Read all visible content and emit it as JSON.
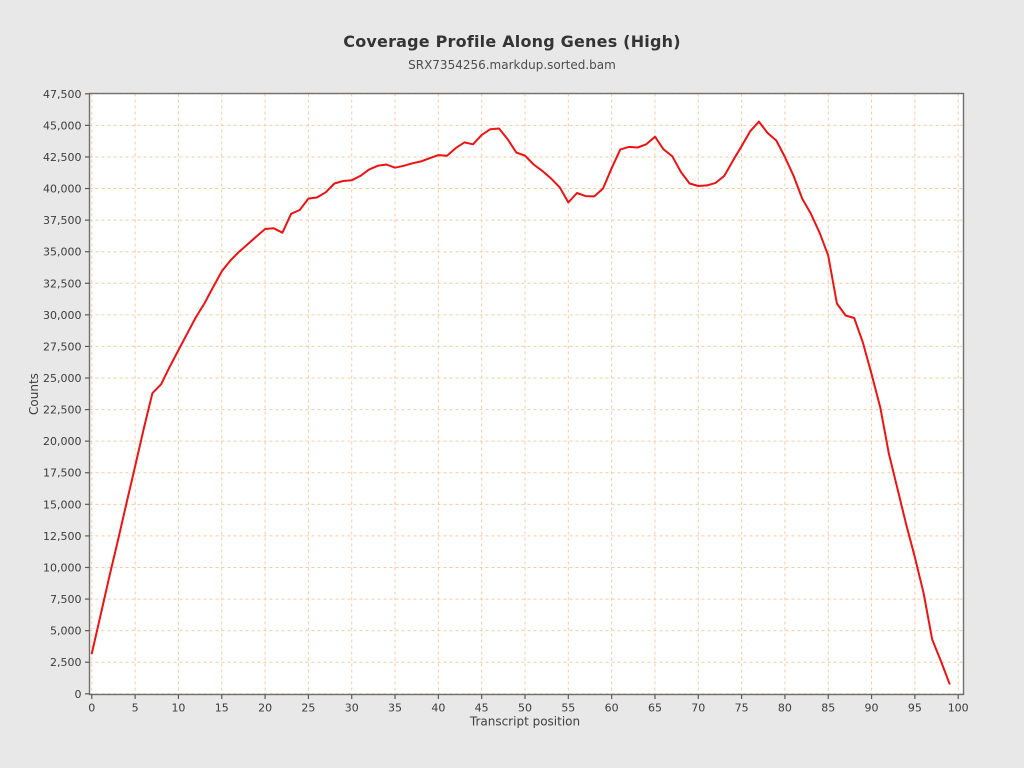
{
  "page": {
    "background": "#e8e8e8"
  },
  "header": {
    "title": "Coverage Profile Along Genes (High)",
    "subtitle": "SRX7354256.markdup.sorted.bam"
  },
  "chart_data": {
    "type": "line",
    "title": "Coverage Profile Along Genes (High)",
    "subtitle": "SRX7354256.markdup.sorted.bam",
    "xlabel": "Transcript position",
    "ylabel": "Counts",
    "xlim": [
      0,
      100
    ],
    "ylim": [
      0,
      47500
    ],
    "x_ticks": [
      0,
      5,
      10,
      15,
      20,
      25,
      30,
      35,
      40,
      45,
      50,
      55,
      60,
      65,
      70,
      75,
      80,
      85,
      90,
      95,
      100
    ],
    "y_ticks": [
      0,
      2500,
      5000,
      7500,
      10000,
      12500,
      15000,
      17500,
      20000,
      22500,
      25000,
      27500,
      30000,
      32500,
      35000,
      37500,
      40000,
      42500,
      45000,
      47500
    ],
    "grid": true,
    "legend": "none",
    "colors": {
      "line": "#ee1312",
      "grid": "#f6cba2",
      "plot_background": "#ffffff",
      "plot_border": "#6f6f6f",
      "tick": "#5a5a5a"
    },
    "series": [
      {
        "name": "coverage",
        "x": [
          0,
          1,
          2,
          3,
          4,
          5,
          6,
          7,
          8,
          9,
          10,
          11,
          12,
          13,
          14,
          15,
          16,
          17,
          18,
          19,
          20,
          21,
          22,
          23,
          24,
          25,
          26,
          27,
          28,
          29,
          30,
          31,
          32,
          33,
          34,
          35,
          36,
          37,
          38,
          39,
          40,
          41,
          42,
          43,
          44,
          45,
          46,
          47,
          48,
          49,
          50,
          51,
          52,
          53,
          54,
          55,
          56,
          57,
          58,
          59,
          60,
          61,
          62,
          63,
          64,
          65,
          66,
          67,
          68,
          69,
          70,
          71,
          72,
          73,
          74,
          75,
          76,
          77,
          78,
          79,
          80,
          81,
          82,
          83,
          84,
          85,
          86,
          87,
          88,
          89,
          90,
          91,
          92,
          93,
          94,
          95,
          96,
          97,
          98,
          99
        ],
        "values": [
          3200,
          6200,
          9200,
          12100,
          15100,
          18000,
          21000,
          23800,
          24500,
          25900,
          27200,
          28500,
          29800,
          30900,
          32200,
          33450,
          34300,
          35000,
          35600,
          36200,
          36800,
          36850,
          36500,
          38000,
          38300,
          39200,
          39300,
          39700,
          40400,
          40600,
          40650,
          41000,
          41500,
          41800,
          41900,
          41650,
          41800,
          42000,
          42150,
          42400,
          42650,
          42600,
          43200,
          43650,
          43500,
          44250,
          44700,
          44750,
          43900,
          42850,
          42600,
          41900,
          41400,
          40800,
          40100,
          38900,
          39650,
          39400,
          39380,
          40000,
          41600,
          43100,
          43300,
          43250,
          43500,
          44100,
          43100,
          42550,
          41300,
          40400,
          40200,
          40250,
          40450,
          41000,
          42200,
          43350,
          44550,
          45300,
          44400,
          43800,
          42500,
          41000,
          39200,
          38000,
          36500,
          34700,
          30900,
          29950,
          29750,
          27800,
          25300,
          22700,
          19000,
          16200,
          13400,
          10800,
          8000,
          4300,
          2600,
          800
        ]
      }
    ]
  }
}
